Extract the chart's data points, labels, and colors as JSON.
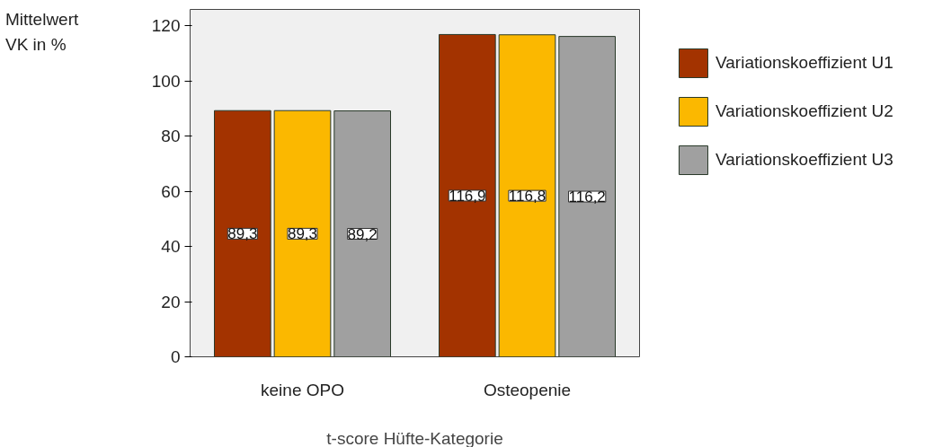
{
  "chart_data": {
    "type": "bar",
    "xlabel": "t-score Hüfte-Kategorie",
    "ylabel": "Mittelwert\nVK in %",
    "categories": [
      "keine OPO",
      "Osteopenie"
    ],
    "series": [
      {
        "name": "Variationskoeffizient U1",
        "color": "#a33300",
        "values": [
          89.3,
          116.9
        ],
        "value_labels": [
          "89,3",
          "116,9"
        ]
      },
      {
        "name": "Variationskoeffizient U2",
        "color": "#fbb800",
        "values": [
          89.3,
          116.8
        ],
        "value_labels": [
          "89,3",
          "116,8"
        ]
      },
      {
        "name": "Variationskoeffizient U3",
        "color": "#a0a0a0",
        "values": [
          89.2,
          116.2
        ],
        "value_labels": [
          "89,2",
          "116,2"
        ]
      }
    ],
    "ylim": [
      0,
      126
    ],
    "yticks": [
      0,
      20,
      40,
      60,
      80,
      100,
      120
    ],
    "legend": "right"
  }
}
